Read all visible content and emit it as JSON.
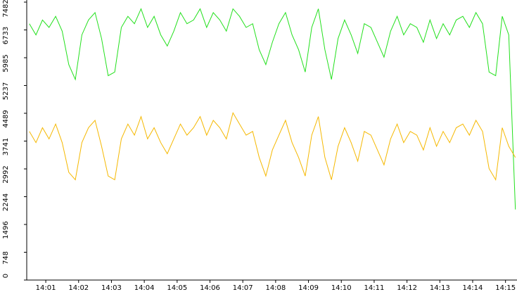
{
  "chart_data": {
    "type": "line",
    "x": [
      0.5,
      0.7,
      0.9,
      1.1,
      1.3,
      1.5,
      1.7,
      1.9,
      2.1,
      2.3,
      2.5,
      2.7,
      2.9,
      3.1,
      3.3,
      3.5,
      3.7,
      3.9,
      4.1,
      4.3,
      4.5,
      4.7,
      4.9,
      5.1,
      5.3,
      5.5,
      5.7,
      5.9,
      6.1,
      6.3,
      6.5,
      6.7,
      6.9,
      7.1,
      7.3,
      7.5,
      7.7,
      7.9,
      8.1,
      8.3,
      8.5,
      8.7,
      8.9,
      9.1,
      9.3,
      9.5,
      9.7,
      9.9,
      10.1,
      10.3,
      10.5,
      10.7,
      10.9,
      11.1,
      11.3,
      11.5,
      11.7,
      11.9,
      12.1,
      12.3,
      12.5,
      12.7,
      12.9,
      13.1,
      13.3,
      13.5,
      13.7,
      13.9,
      14.1,
      14.3,
      14.5,
      14.7,
      14.9,
      15.1,
      15.3
    ],
    "series": [
      {
        "color": "#22e01c",
        "values": [
          6900,
          6600,
          7000,
          6800,
          7100,
          6700,
          5800,
          5400,
          6600,
          7000,
          7200,
          6500,
          5500,
          5600,
          6800,
          7100,
          6900,
          7300,
          6800,
          7100,
          6600,
          6300,
          6700,
          7200,
          6900,
          7000,
          7300,
          6800,
          7200,
          7000,
          6700,
          7300,
          7100,
          6800,
          6900,
          6200,
          5800,
          6400,
          6900,
          7200,
          6600,
          6200,
          5600,
          6800,
          7300,
          6200,
          5400,
          6500,
          7000,
          6600,
          6100,
          6900,
          6800,
          6400,
          6000,
          6700,
          7100,
          6600,
          6900,
          6800,
          6400,
          7000,
          6500,
          6900,
          6600,
          7000,
          7100,
          6800,
          7200,
          6900,
          5600,
          5500,
          7100,
          6600,
          1900
        ]
      },
      {
        "color": "#f5b800",
        "values": [
          4000,
          3700,
          4100,
          3800,
          4200,
          3700,
          2900,
          2700,
          3700,
          4100,
          4300,
          3600,
          2800,
          2700,
          3800,
          4200,
          3900,
          4400,
          3800,
          4100,
          3700,
          3400,
          3800,
          4200,
          3900,
          4100,
          4400,
          3900,
          4300,
          4100,
          3800,
          4500,
          4200,
          3900,
          4000,
          3300,
          2800,
          3500,
          3900,
          4300,
          3700,
          3300,
          2800,
          3900,
          4400,
          3300,
          2700,
          3600,
          4100,
          3700,
          3200,
          4000,
          3900,
          3500,
          3100,
          3800,
          4200,
          3700,
          4000,
          3900,
          3500,
          4100,
          3600,
          4000,
          3700,
          4100,
          4200,
          3900,
          4300,
          4000,
          3000,
          2700,
          4100,
          3600,
          3300
        ]
      }
    ],
    "xlim": [
      0.42,
      15.35
    ],
    "xticks": [
      {
        "value": 1,
        "label": "14:01"
      },
      {
        "value": 2,
        "label": "14:02"
      },
      {
        "value": 3,
        "label": "14:03"
      },
      {
        "value": 4,
        "label": "14:04"
      },
      {
        "value": 5,
        "label": "14:05"
      },
      {
        "value": 6,
        "label": "14:06"
      },
      {
        "value": 7,
        "label": "14:07"
      },
      {
        "value": 8,
        "label": "14:08"
      },
      {
        "value": 9,
        "label": "14:09"
      },
      {
        "value": 10,
        "label": "14:10"
      },
      {
        "value": 11,
        "label": "14:11"
      },
      {
        "value": 12,
        "label": "14:12"
      },
      {
        "value": 13,
        "label": "14:13"
      },
      {
        "value": 14,
        "label": "14:14"
      },
      {
        "value": 15,
        "label": "14:15"
      }
    ],
    "ylim": [
      0,
      7482
    ],
    "yticks": [
      0,
      748,
      1496,
      2244,
      2992,
      3741,
      4489,
      5237,
      5985,
      6733,
      7482
    ]
  }
}
